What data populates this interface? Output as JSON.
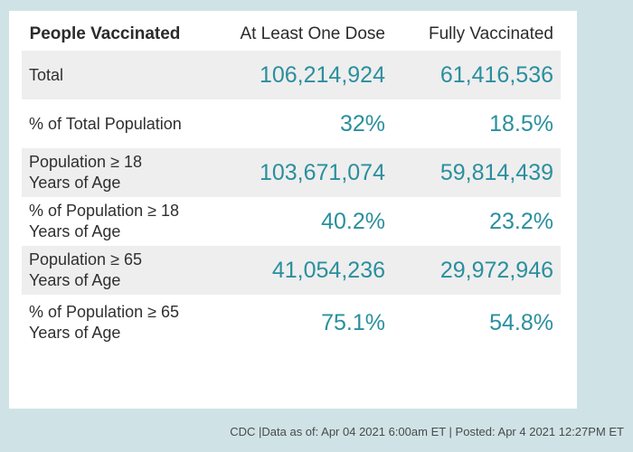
{
  "table": {
    "headers": {
      "label": "People Vaccinated",
      "dose": "At Least One Dose",
      "full": "Fully Vaccinated"
    },
    "rows": [
      {
        "label": "Total",
        "dose": "106,214,924",
        "full": "61,416,536"
      },
      {
        "label": "% of Total Population",
        "dose": "32%",
        "full": "18.5%"
      },
      {
        "label": "Population ≥ 18 Years of Age",
        "dose": "103,671,074",
        "full": "59,814,439"
      },
      {
        "label": "% of Population ≥ 18 Years of Age",
        "dose": "40.2%",
        "full": "23.2%"
      },
      {
        "label": "Population ≥ 65 Years of Age",
        "dose": "41,054,236",
        "full": "29,972,946"
      },
      {
        "label": "% of Population ≥ 65 Years of Age",
        "dose": "75.1%",
        "full": "54.8%"
      }
    ]
  },
  "footer": "CDC |Data as of: Apr 04 2021 6:00am ET | Posted: Apr 4 2021 12:27PM ET"
}
